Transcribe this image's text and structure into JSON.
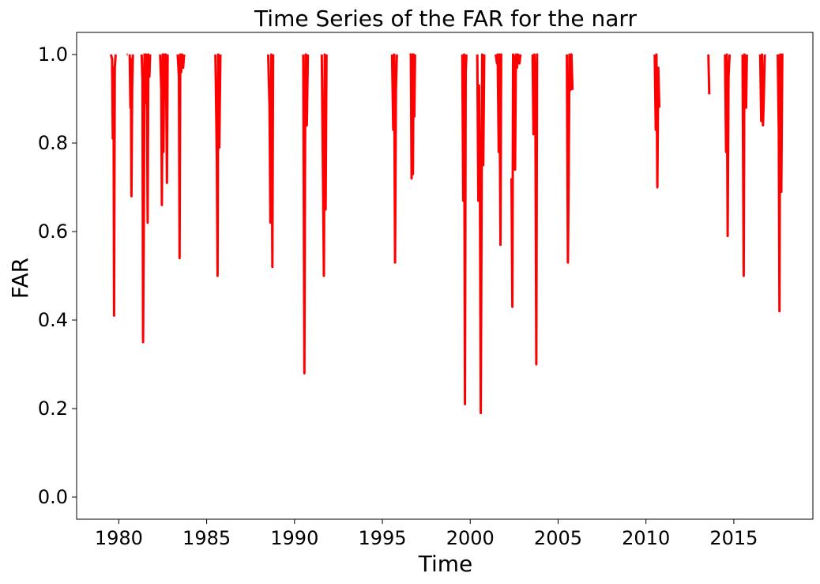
{
  "chart_data": {
    "type": "line",
    "title": "Time Series of the FAR for the narr",
    "xlabel": "Time",
    "ylabel": "FAR",
    "xlim": [
      1977.6,
      2019.5
    ],
    "ylim": [
      -0.05,
      1.05
    ],
    "xticks": [
      1980,
      1985,
      1990,
      1995,
      2000,
      2005,
      2010,
      2015
    ],
    "xtick_labels": [
      "1980",
      "1985",
      "1990",
      "1995",
      "2000",
      "2005",
      "2010",
      "2015"
    ],
    "yticks": [
      0.0,
      0.2,
      0.4,
      0.6,
      0.8,
      1.0
    ],
    "ytick_labels": [
      "0.0",
      "0.2",
      "0.4",
      "0.6",
      "0.8",
      "1.0"
    ],
    "grid": false,
    "series": [
      {
        "color": "#ff0000",
        "segments": [
          [
            [
              1979.55,
              1.0
            ],
            [
              1979.62,
              0.99
            ],
            [
              1979.66,
              0.81
            ],
            [
              1979.7,
              0.97
            ],
            [
              1979.73,
              0.41
            ],
            [
              1979.77,
              0.97
            ],
            [
              1979.82,
              1.0
            ]
          ],
          [
            [
              1980.45,
              1.0
            ],
            [
              1980.5,
              1.0
            ]
          ],
          [
            [
              1980.62,
              1.0
            ],
            [
              1980.66,
              0.88
            ],
            [
              1980.69,
              0.99
            ],
            [
              1980.72,
              0.68
            ],
            [
              1980.76,
              0.92
            ],
            [
              1980.8,
              1.0
            ]
          ],
          [
            [
              1981.3,
              1.0
            ],
            [
              1981.35,
              0.94
            ],
            [
              1981.38,
              0.35
            ],
            [
              1981.42,
              0.6
            ],
            [
              1981.46,
              1.0
            ],
            [
              1981.52,
              0.89
            ],
            [
              1981.56,
              1.0
            ],
            [
              1981.61,
              0.87
            ],
            [
              1981.64,
              0.62
            ],
            [
              1981.68,
              1.0
            ],
            [
              1981.74,
              0.95
            ],
            [
              1981.78,
              1.0
            ]
          ],
          [
            [
              1982.35,
              1.0
            ],
            [
              1982.42,
              0.92
            ],
            [
              1982.45,
              0.66
            ],
            [
              1982.5,
              1.0
            ],
            [
              1982.54,
              0.78
            ],
            [
              1982.58,
              1.0
            ],
            [
              1982.64,
              0.9
            ],
            [
              1982.68,
              1.0
            ],
            [
              1982.74,
              0.71
            ],
            [
              1982.78,
              1.0
            ]
          ],
          [
            [
              1983.35,
              1.0
            ],
            [
              1983.42,
              0.95
            ],
            [
              1983.46,
              0.54
            ],
            [
              1983.5,
              1.0
            ],
            [
              1983.55,
              0.96
            ],
            [
              1983.6,
              1.0
            ],
            [
              1983.66,
              0.97
            ],
            [
              1983.72,
              1.0
            ]
          ],
          [
            [
              1985.5,
              1.0
            ],
            [
              1985.58,
              0.76
            ],
            [
              1985.62,
              0.5
            ],
            [
              1985.66,
              1.0
            ],
            [
              1985.72,
              0.79
            ],
            [
              1985.78,
              1.0
            ]
          ],
          [
            [
              1988.5,
              1.0
            ],
            [
              1988.58,
              0.88
            ],
            [
              1988.63,
              0.62
            ],
            [
              1988.68,
              1.0
            ],
            [
              1988.74,
              0.52
            ],
            [
              1988.78,
              1.0
            ]
          ],
          [
            [
              1990.5,
              1.0
            ],
            [
              1990.56,
              0.28
            ],
            [
              1990.6,
              0.81
            ],
            [
              1990.64,
              1.0
            ],
            [
              1990.7,
              0.84
            ],
            [
              1990.76,
              1.0
            ]
          ],
          [
            [
              1991.55,
              1.0
            ],
            [
              1991.62,
              0.72
            ],
            [
              1991.67,
              0.5
            ],
            [
              1991.72,
              1.0
            ],
            [
              1991.77,
              0.65
            ],
            [
              1991.82,
              1.0
            ]
          ],
          [
            [
              1995.55,
              1.0
            ],
            [
              1995.62,
              0.83
            ],
            [
              1995.67,
              1.0
            ],
            [
              1995.72,
              0.53
            ],
            [
              1995.77,
              0.92
            ],
            [
              1995.82,
              1.0
            ]
          ],
          [
            [
              1996.55,
              1.0
            ],
            [
              1996.62,
              1.0
            ],
            [
              1996.66,
              0.72
            ],
            [
              1996.7,
              1.0
            ],
            [
              1996.74,
              0.73
            ],
            [
              1996.78,
              1.0
            ],
            [
              1996.82,
              0.86
            ],
            [
              1996.86,
              1.0
            ]
          ],
          [
            [
              1999.55,
              1.0
            ],
            [
              1999.6,
              0.67
            ],
            [
              1999.65,
              1.0
            ],
            [
              1999.7,
              0.21
            ],
            [
              1999.74,
              0.96
            ],
            [
              1999.78,
              1.0
            ]
          ],
          [
            [
              2000.4,
              1.0
            ],
            [
              2000.46,
              0.67
            ],
            [
              2000.5,
              0.93
            ],
            [
              2000.55,
              0.72
            ],
            [
              2000.6,
              0.19
            ],
            [
              2000.64,
              0.6
            ],
            [
              2000.68,
              1.0
            ],
            [
              2000.74,
              0.75
            ],
            [
              2000.8,
              1.0
            ]
          ],
          [
            [
              2001.45,
              1.0
            ],
            [
              2001.52,
              0.98
            ],
            [
              2001.56,
              1.0
            ],
            [
              2001.62,
              0.78
            ],
            [
              2001.66,
              1.0
            ],
            [
              2001.72,
              0.57
            ],
            [
              2001.76,
              1.0
            ],
            [
              2001.82,
              1.0
            ]
          ],
          [
            [
              2002.35,
              0.72
            ],
            [
              2002.4,
              0.43
            ],
            [
              2002.44,
              1.0
            ],
            [
              2002.5,
              0.99
            ],
            [
              2002.55,
              0.74
            ],
            [
              2002.6,
              1.0
            ],
            [
              2002.66,
              0.97
            ],
            [
              2002.72,
              1.0
            ],
            [
              2002.8,
              0.98
            ],
            [
              2002.86,
              1.0
            ]
          ],
          [
            [
              2003.55,
              1.0
            ],
            [
              2003.6,
              0.82
            ],
            [
              2003.65,
              1.0
            ],
            [
              2003.7,
              0.94
            ],
            [
              2003.76,
              0.3
            ],
            [
              2003.8,
              1.0
            ],
            [
              2003.86,
              1.0
            ]
          ],
          [
            [
              2005.5,
              1.0
            ],
            [
              2005.56,
              0.53
            ],
            [
              2005.6,
              0.71
            ],
            [
              2005.65,
              1.0
            ],
            [
              2005.7,
              0.92
            ],
            [
              2005.76,
              1.0
            ],
            [
              2005.82,
              0.92
            ]
          ],
          [
            [
              2010.5,
              1.0
            ],
            [
              2010.56,
              0.83
            ],
            [
              2010.6,
              1.0
            ],
            [
              2010.65,
              0.7
            ],
            [
              2010.7,
              0.97
            ],
            [
              2010.76,
              0.88
            ]
          ],
          [
            [
              2013.55,
              1.0
            ],
            [
              2013.6,
              0.91
            ]
          ],
          [
            [
              2014.5,
              1.0
            ],
            [
              2014.56,
              0.78
            ],
            [
              2014.6,
              1.0
            ],
            [
              2014.65,
              0.59
            ],
            [
              2014.7,
              0.95
            ],
            [
              2014.76,
              1.0
            ]
          ],
          [
            [
              2015.5,
              1.0
            ],
            [
              2015.56,
              0.5
            ],
            [
              2015.6,
              1.0
            ],
            [
              2015.66,
              0.94
            ],
            [
              2015.7,
              0.88
            ],
            [
              2015.74,
              1.0
            ]
          ],
          [
            [
              2016.5,
              1.0
            ],
            [
              2016.56,
              0.85
            ],
            [
              2016.6,
              1.0
            ],
            [
              2016.66,
              0.84
            ],
            [
              2016.7,
              0.89
            ],
            [
              2016.76,
              1.0
            ]
          ],
          [
            [
              2017.5,
              1.0
            ],
            [
              2017.56,
              0.83
            ],
            [
              2017.6,
              0.42
            ],
            [
              2017.64,
              1.0
            ],
            [
              2017.7,
              0.69
            ],
            [
              2017.76,
              1.0
            ],
            [
              2017.82,
              1.0
            ]
          ]
        ]
      }
    ]
  }
}
